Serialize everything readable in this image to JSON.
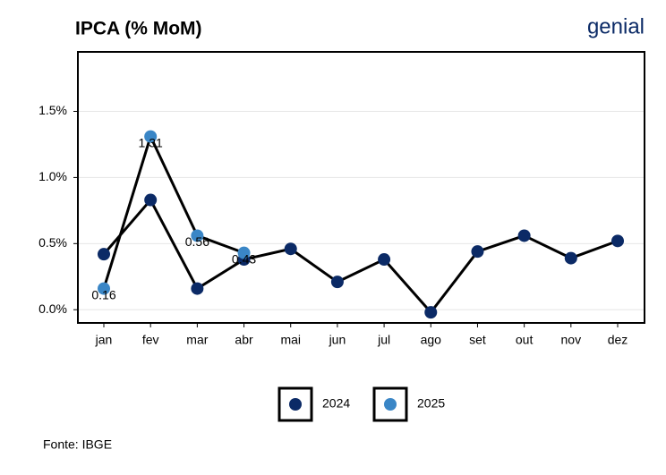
{
  "chart_data": {
    "type": "line",
    "title": "IPCA (% MoM)",
    "brand": "genial",
    "source": "Fonte: IBGE",
    "categories": [
      "jan",
      "fev",
      "mar",
      "abr",
      "mai",
      "jun",
      "jul",
      "ago",
      "set",
      "out",
      "nov",
      "dez"
    ],
    "series": [
      {
        "name": "2024",
        "color": "#0b2a66",
        "values": [
          0.42,
          0.83,
          0.16,
          0.38,
          0.46,
          0.21,
          0.38,
          -0.02,
          0.44,
          0.56,
          0.39,
          0.52
        ]
      },
      {
        "name": "2025",
        "color": "#3a86c6",
        "values": [
          0.16,
          1.31,
          0.56,
          0.43,
          null,
          null,
          null,
          null,
          null,
          null,
          null,
          null
        ],
        "data_labels": true
      }
    ],
    "line_color": "#000000",
    "ylim": [
      -0.1,
      1.95
    ],
    "yticks": [
      {
        "value": 0,
        "label": "0.0%"
      },
      {
        "value": 0.5,
        "label": "0.5%"
      },
      {
        "value": 1.0,
        "label": "1.0%"
      },
      {
        "value": 1.5,
        "label": "1.5%"
      }
    ],
    "grid": true,
    "legend": "bottom"
  }
}
